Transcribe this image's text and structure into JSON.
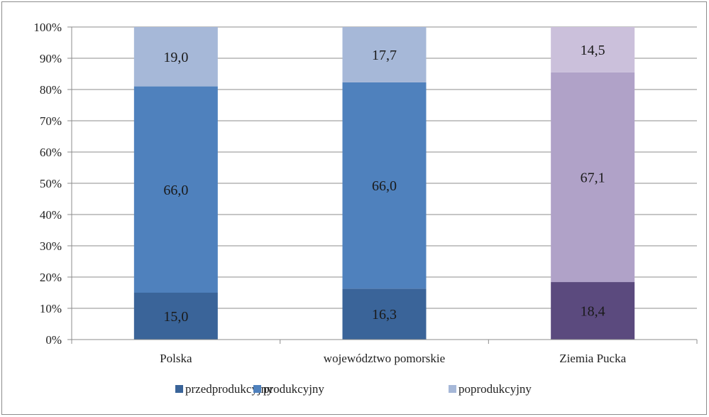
{
  "chart_data": {
    "type": "bar",
    "stacked": true,
    "percent": true,
    "categories": [
      "Polska",
      "województwo pomorskie",
      "Ziemia Pucka"
    ],
    "series": [
      {
        "name": "przedprodukcyjny",
        "values": [
          15.0,
          16.3,
          18.4
        ],
        "labels": [
          "15,0",
          "16,3",
          "18,4"
        ]
      },
      {
        "name": "produkcyjny",
        "values": [
          66.0,
          66.0,
          67.1
        ],
        "labels": [
          "66,0",
          "66,0",
          "67,1"
        ]
      },
      {
        "name": "poprodukcyjny",
        "values": [
          19.0,
          17.7,
          14.5
        ],
        "labels": [
          "19,0",
          "17,7",
          "14,5"
        ]
      }
    ],
    "colors": {
      "default": [
        "#3a6499",
        "#4f81bd",
        "#a6b8d8"
      ],
      "Ziemia Pucka": [
        "#5b4a7e",
        "#b0a2c8",
        "#cbc0db"
      ]
    },
    "yticks": [
      "0%",
      "10%",
      "20%",
      "30%",
      "40%",
      "50%",
      "60%",
      "70%",
      "80%",
      "90%",
      "100%"
    ],
    "ylim": [
      0,
      100
    ],
    "grid": true,
    "legend_position": "bottom",
    "gridline_color": "#8c8c8c"
  }
}
